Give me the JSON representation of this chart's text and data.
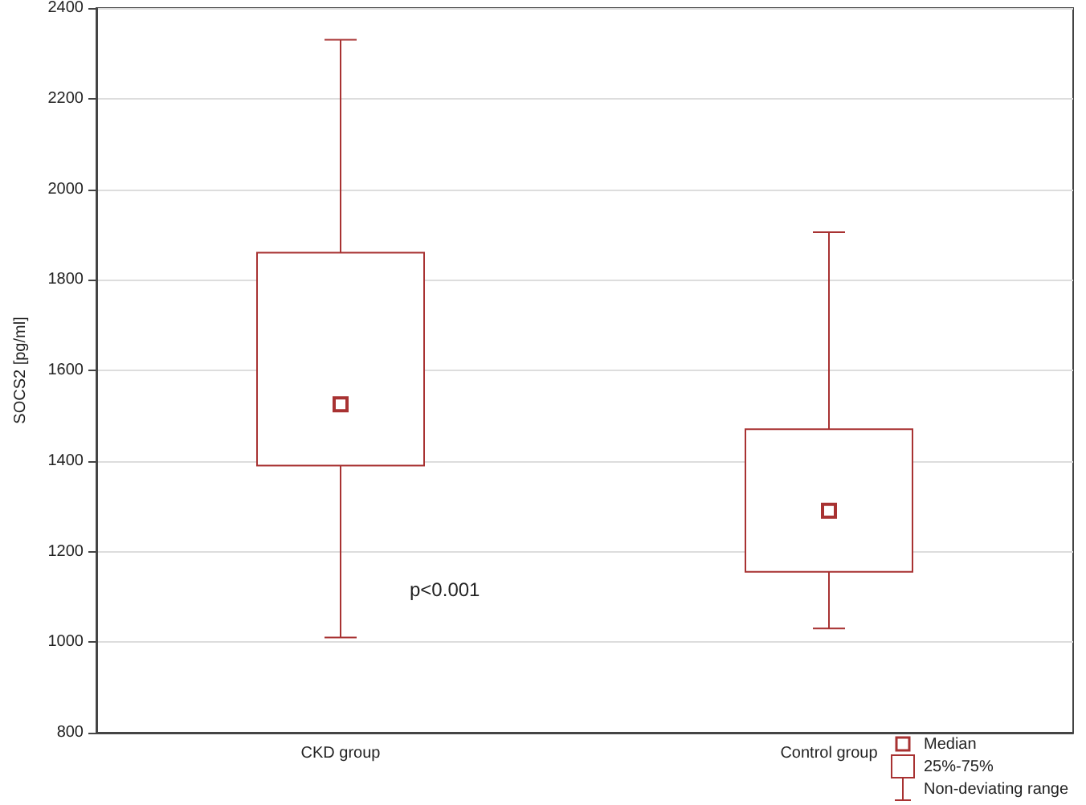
{
  "chart_data": {
    "type": "box",
    "ylabel": "SOCS2 [pg/ml]",
    "categories": [
      "CKD group",
      "Control group"
    ],
    "series": [
      {
        "color": "#a83232",
        "boxes": [
          {
            "low": 1010,
            "q1": 1390,
            "median": 1525,
            "q3": 1860,
            "high": 2330
          },
          {
            "low": 1030,
            "q1": 1155,
            "median": 1290,
            "q3": 1470,
            "high": 1905
          }
        ]
      }
    ],
    "ylim": [
      800,
      2400
    ],
    "yticks": [
      800,
      1000,
      1200,
      1400,
      1600,
      1800,
      2000,
      2200,
      2400
    ],
    "grid": "y",
    "annotations": [
      "p<0.001",
      "Median",
      "25%-75%",
      "Non-deviating range"
    ]
  }
}
